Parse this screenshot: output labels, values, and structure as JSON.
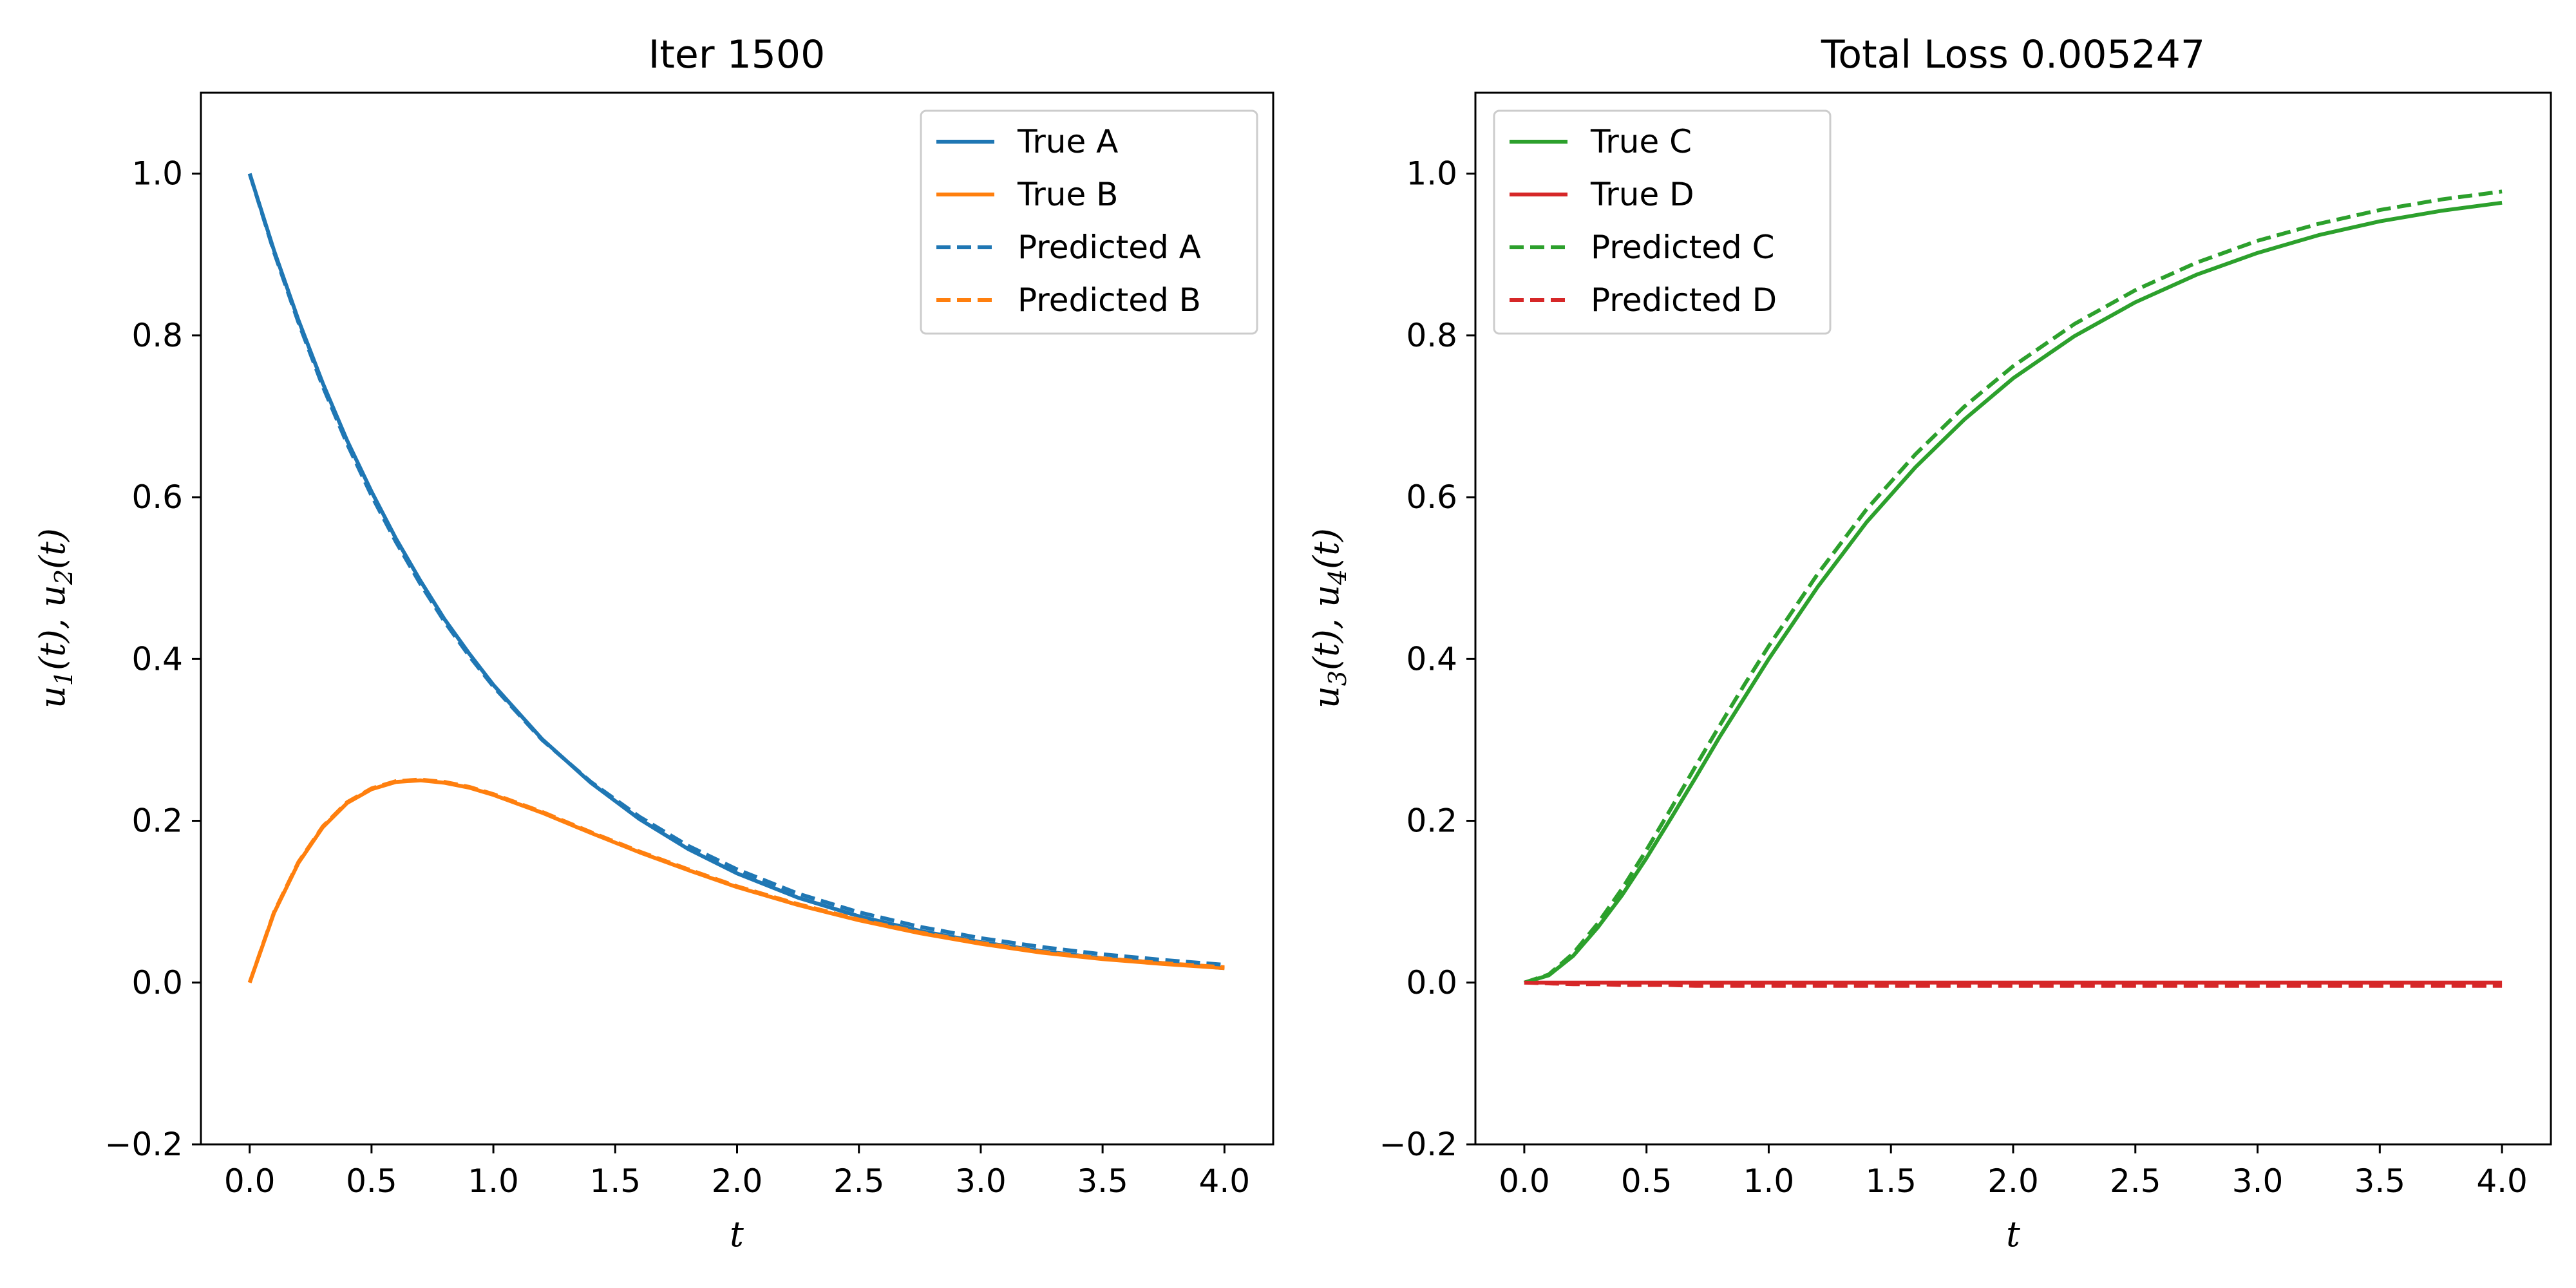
{
  "chart_data": [
    {
      "type": "line",
      "title": "Iter 1500",
      "xlabel": "t",
      "ylabel": "u_1(t), u_2(t)",
      "xlim": [
        -0.2,
        4.2
      ],
      "ylim": [
        -0.2,
        1.1
      ],
      "xticks": [
        "0.0",
        "0.5",
        "1.0",
        "1.5",
        "2.0",
        "2.5",
        "3.0",
        "3.5",
        "4.0"
      ],
      "yticks": [
        "−0.2",
        "0.0",
        "0.2",
        "0.4",
        "0.6",
        "0.8",
        "1.0"
      ],
      "grid": false,
      "legend_position": "top-right",
      "x": [
        0.0,
        0.1,
        0.2,
        0.3,
        0.4,
        0.5,
        0.6,
        0.7,
        0.8,
        0.9,
        1.0,
        1.2,
        1.4,
        1.6,
        1.8,
        2.0,
        2.25,
        2.5,
        2.75,
        3.0,
        3.25,
        3.5,
        3.75,
        4.0
      ],
      "series": [
        {
          "name": "True A",
          "style": "solid",
          "color": "#1f77b4",
          "values": [
            1.0,
            0.905,
            0.819,
            0.741,
            0.67,
            0.607,
            0.549,
            0.497,
            0.449,
            0.407,
            0.368,
            0.301,
            0.247,
            0.202,
            0.165,
            0.135,
            0.105,
            0.082,
            0.064,
            0.05,
            0.039,
            0.03,
            0.024,
            0.018
          ]
        },
        {
          "name": "True B",
          "style": "solid",
          "color": "#ff7f0e",
          "values": [
            0.0,
            0.086,
            0.148,
            0.192,
            0.222,
            0.239,
            0.248,
            0.25,
            0.247,
            0.241,
            0.232,
            0.21,
            0.185,
            0.161,
            0.139,
            0.118,
            0.096,
            0.077,
            0.061,
            0.048,
            0.037,
            0.029,
            0.023,
            0.018
          ]
        },
        {
          "name": "Predicted A",
          "style": "dashed",
          "color": "#1f77b4",
          "values": [
            1.0,
            0.903,
            0.816,
            0.737,
            0.666,
            0.602,
            0.545,
            0.493,
            0.446,
            0.404,
            0.366,
            0.3,
            0.248,
            0.205,
            0.169,
            0.14,
            0.11,
            0.087,
            0.069,
            0.055,
            0.044,
            0.035,
            0.028,
            0.022
          ]
        },
        {
          "name": "Predicted B",
          "style": "dashed",
          "color": "#ff7f0e",
          "values": [
            0.0,
            0.087,
            0.149,
            0.193,
            0.223,
            0.24,
            0.249,
            0.251,
            0.248,
            0.242,
            0.233,
            0.211,
            0.186,
            0.162,
            0.14,
            0.119,
            0.097,
            0.078,
            0.062,
            0.049,
            0.038,
            0.03,
            0.024,
            0.019
          ]
        }
      ]
    },
    {
      "type": "line",
      "title": "Total Loss 0.005247",
      "xlabel": "t",
      "ylabel": "u_3(t), u_4(t)",
      "xlim": [
        -0.2,
        4.2
      ],
      "ylim": [
        -0.2,
        1.1
      ],
      "xticks": [
        "0.0",
        "0.5",
        "1.0",
        "1.5",
        "2.0",
        "2.5",
        "3.0",
        "3.5",
        "4.0"
      ],
      "yticks": [
        "−0.2",
        "0.0",
        "0.2",
        "0.4",
        "0.6",
        "0.8",
        "1.0"
      ],
      "grid": false,
      "legend_position": "top-left",
      "x": [
        0.0,
        0.1,
        0.2,
        0.3,
        0.4,
        0.5,
        0.6,
        0.7,
        0.8,
        0.9,
        1.0,
        1.2,
        1.4,
        1.6,
        1.8,
        2.0,
        2.25,
        2.5,
        2.75,
        3.0,
        3.25,
        3.5,
        3.75,
        4.0
      ],
      "series": [
        {
          "name": "True C",
          "style": "solid",
          "color": "#2ca02c",
          "values": [
            0.0,
            0.009,
            0.033,
            0.068,
            0.108,
            0.154,
            0.203,
            0.253,
            0.304,
            0.352,
            0.4,
            0.489,
            0.569,
            0.637,
            0.696,
            0.747,
            0.799,
            0.841,
            0.875,
            0.902,
            0.924,
            0.941,
            0.954,
            0.964
          ]
        },
        {
          "name": "True D",
          "style": "solid",
          "color": "#d62728",
          "values": [
            0.0,
            0.0,
            0.0,
            0.0,
            0.0,
            0.0,
            0.0,
            0.0,
            0.0,
            0.0,
            0.0,
            0.0,
            0.0,
            0.0,
            0.0,
            0.0,
            0.0,
            0.0,
            0.0,
            0.0,
            0.0,
            0.0,
            0.0,
            0.0
          ]
        },
        {
          "name": "Predicted C",
          "style": "dashed",
          "color": "#2ca02c",
          "values": [
            0.0,
            0.01,
            0.036,
            0.073,
            0.116,
            0.164,
            0.215,
            0.267,
            0.318,
            0.368,
            0.416,
            0.505,
            0.585,
            0.653,
            0.712,
            0.762,
            0.814,
            0.856,
            0.89,
            0.917,
            0.938,
            0.955,
            0.968,
            0.978
          ]
        },
        {
          "name": "Predicted D",
          "style": "dashed",
          "color": "#d62728",
          "values": [
            0.0,
            -0.001,
            -0.002,
            -0.002,
            -0.003,
            -0.003,
            -0.003,
            -0.004,
            -0.004,
            -0.004,
            -0.004,
            -0.004,
            -0.004,
            -0.004,
            -0.004,
            -0.004,
            -0.004,
            -0.004,
            -0.004,
            -0.004,
            -0.004,
            -0.004,
            -0.004,
            -0.004
          ]
        }
      ]
    }
  ]
}
